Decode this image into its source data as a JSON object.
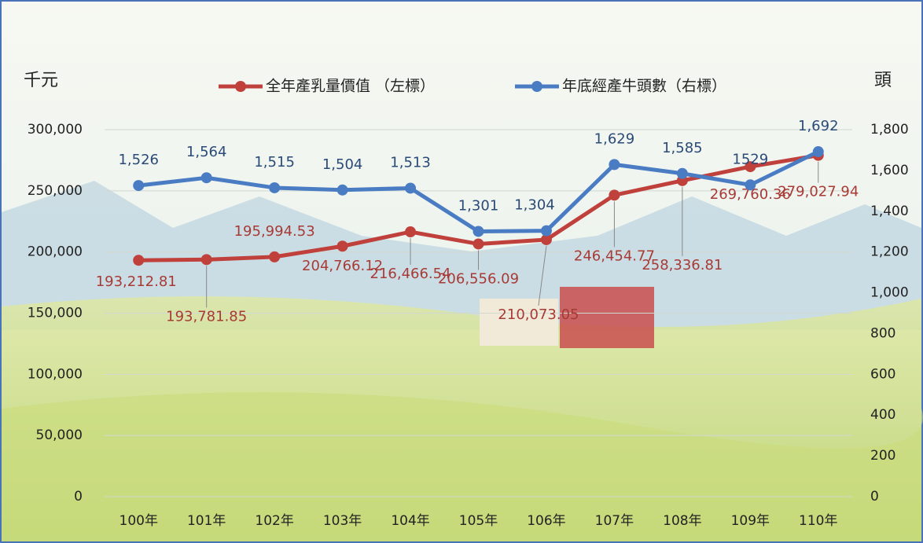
{
  "chart_data": {
    "type": "line",
    "y_label": "千元",
    "y2_label": "頭",
    "categories": [
      "100年",
      "101年",
      "102年",
      "103年",
      "104年",
      "105年",
      "106年",
      "107年",
      "108年",
      "109年",
      "110年"
    ],
    "series": [
      {
        "name": "全年產乳量價值 （左標）",
        "color": "#c0403c",
        "axis": "y",
        "values": [
          193212.81,
          193781.85,
          195994.53,
          204766.12,
          216466.54,
          206556.09,
          210073.05,
          246454.77,
          258336.81,
          269760.36,
          279027.94
        ],
        "value_labels": [
          "193,212.81",
          "193,781.85",
          "195,994.53",
          "204,766.12",
          "216,466.54",
          "206,556.09",
          "210,073.05",
          "246,454.77",
          "258,336.81",
          "269,760.36",
          "279,027.94"
        ]
      },
      {
        "name": "年底經產牛頭數（右標）",
        "color": "#4a7cc4",
        "axis": "y2",
        "values": [
          1526,
          1564,
          1515,
          1504,
          1513,
          1301,
          1304,
          1629,
          1585,
          1529,
          1692
        ],
        "value_labels": [
          "1,526",
          "1,564",
          "1,515",
          "1,504",
          "1,513",
          "1,301",
          "1,304",
          "1,629",
          "1,585",
          "1529",
          "1,692"
        ]
      }
    ],
    "ylim": [
      0,
      300000
    ],
    "yticks": [
      0,
      {
        "value": 50000,
        "label": "50,000"
      },
      {
        "value": 100000,
        "label": "100,000"
      },
      {
        "value": 150000,
        "label": "150,000"
      },
      {
        "value": 200000,
        "label": "200,000"
      },
      {
        "value": 250000,
        "label": "250,000"
      },
      {
        "value": 300000,
        "label": "300,000"
      }
    ],
    "y2lim": [
      0,
      1800
    ],
    "y2ticks": [
      0,
      200,
      400,
      600,
      800,
      {
        "value": 1000,
        "label": "1,000"
      },
      {
        "value": 1200,
        "label": "1,200"
      },
      {
        "value": 1400,
        "label": "1,400"
      },
      {
        "value": 1600,
        "label": "1,600"
      },
      {
        "value": 1800,
        "label": "1,800"
      }
    ],
    "grid": true
  }
}
